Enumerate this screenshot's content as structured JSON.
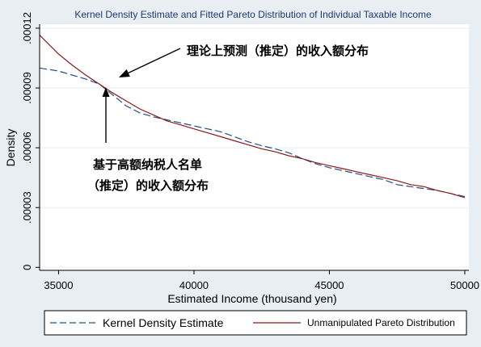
{
  "chart_data": {
    "type": "line",
    "title": "Kernel Density Estimate and Fitted Pareto Distribution of Individual Taxable Income",
    "xlabel": "Estimated Income (thousand yen)",
    "ylabel": "Density",
    "xlim": [
      34300,
      50150
    ],
    "ylim": [
      -1.5e-06,
      0.000122
    ],
    "xticks": [
      35000,
      40000,
      45000,
      50000
    ],
    "xtick_labels": [
      "35000",
      "40000",
      "45000",
      "50000"
    ],
    "yticks": [
      0,
      3e-05,
      6e-05,
      9e-05,
      0.00012
    ],
    "ytick_labels": [
      "0",
      ".00003",
      ".00006",
      ".00009",
      ".00012"
    ],
    "grid": "horizontal",
    "series": [
      {
        "name": "Kernel Density Estimate",
        "style": "dashed",
        "color": "#1f4e8c",
        "x": [
          34300,
          35000,
          35500,
          36000,
          36500,
          37000,
          37500,
          38000,
          38500,
          39000,
          39500,
          40000,
          40500,
          41000,
          41500,
          42000,
          42500,
          43000,
          43500,
          44000,
          44500,
          45000,
          45500,
          46000,
          46500,
          47000,
          47500,
          48000,
          48500,
          49000,
          49500,
          50000
        ],
        "y": [
          0.0001,
          9.85e-05,
          9.65e-05,
          9.45e-05,
          9.2e-05,
          8.65e-05,
          8.1e-05,
          7.75e-05,
          7.55e-05,
          7.4e-05,
          7.25e-05,
          7.1e-05,
          6.95e-05,
          6.8e-05,
          6.55e-05,
          6.3e-05,
          6.1e-05,
          5.95e-05,
          5.75e-05,
          5.45e-05,
          5.2e-05,
          5e-05,
          4.85e-05,
          4.7e-05,
          4.55e-05,
          4.4e-05,
          4.15e-05,
          4.05e-05,
          3.95e-05,
          3.85e-05,
          3.7e-05,
          3.55e-05
        ]
      },
      {
        "name": "Unmanipulated Pareto Distribution",
        "style": "solid",
        "color": "#8b1a1a",
        "x": [
          34300,
          35000,
          35500,
          36000,
          36500,
          37000,
          37500,
          38000,
          38500,
          39000,
          39500,
          40000,
          40500,
          41000,
          41500,
          42000,
          42500,
          43000,
          43500,
          44000,
          44500,
          45000,
          45500,
          46000,
          46500,
          47000,
          47500,
          48000,
          48500,
          49000,
          49500,
          50000
        ],
        "y": [
          0.0001165,
          0.000107,
          0.0001015,
          9.65e-05,
          9.2e-05,
          8.75e-05,
          8.35e-05,
          7.95e-05,
          7.65e-05,
          7.35e-05,
          7.15e-05,
          6.95e-05,
          6.75e-05,
          6.55e-05,
          6.35e-05,
          6.15e-05,
          5.95e-05,
          5.8e-05,
          5.6e-05,
          5.45e-05,
          5.25e-05,
          5.1e-05,
          4.95e-05,
          4.8e-05,
          4.65e-05,
          4.5e-05,
          4.35e-05,
          4.15e-05,
          4.05e-05,
          3.85e-05,
          3.7e-05,
          3.5e-05
        ]
      }
    ],
    "legend": {
      "position": "bottom",
      "entries": [
        "Kernel Density Estimate",
        "Unmanipulated Pareto Distribution"
      ]
    },
    "annotations": [
      {
        "text": "理论上预测（推定）的收入额分布",
        "arrow_to": [
          37000,
          9.15e-05
        ]
      },
      {
        "lines": [
          "基于高额纳税人名单",
          "（推定）的收入额分布"
        ],
        "arrow_to": [
          36700,
          8.75e-05
        ]
      }
    ]
  },
  "colors": {
    "background": "#e8eef2",
    "plot_background": "#ffffff",
    "grid": "#e6eef2",
    "axis": "#000000"
  }
}
